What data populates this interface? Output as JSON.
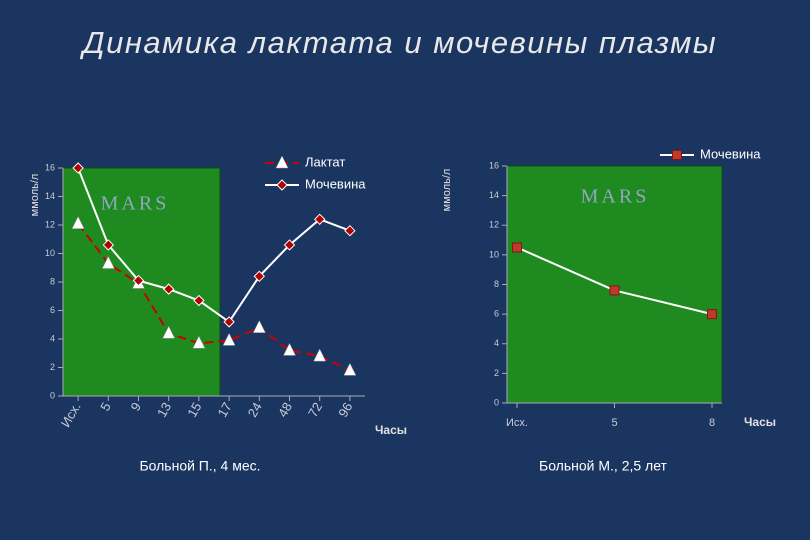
{
  "title": "Динамика лактата и мочевины плазмы",
  "chart_data": [
    {
      "type": "line",
      "y_label": "ммоль/л",
      "x_label": "Часы",
      "annotation": "MARS",
      "caption": "Больной П., 4 мес.",
      "categories": [
        "Исх.",
        "5",
        "9",
        "13",
        "15",
        "17",
        "24",
        "48",
        "72",
        "96"
      ],
      "ylim": [
        0,
        16
      ],
      "yticks": [
        0,
        2,
        4,
        6,
        8,
        10,
        12,
        14,
        16
      ],
      "series": [
        {
          "name": "Лактат",
          "color": "#cc0000",
          "marker": "triangle",
          "marker_color": "#ffffff",
          "dashed": true,
          "values": [
            12.1,
            9.3,
            7.9,
            4.4,
            3.7,
            3.9,
            4.8,
            3.2,
            2.8,
            1.8
          ]
        },
        {
          "name": "Мочевина",
          "color": "#ffffff",
          "marker": "diamond",
          "marker_color": "#b00000",
          "dashed": false,
          "values": [
            16,
            10.6,
            8.1,
            7.5,
            6.7,
            5.2,
            8.4,
            10.6,
            12.4,
            11.6
          ]
        }
      ]
    },
    {
      "type": "line",
      "y_label": "ммоль/л",
      "x_label": "Часы",
      "annotation": "MARS",
      "caption": "Больной М., 2,5 лет",
      "categories": [
        "Исх.",
        "5",
        "8"
      ],
      "ylim": [
        0,
        16
      ],
      "yticks": [
        0,
        2,
        4,
        6,
        8,
        10,
        12,
        14,
        16
      ],
      "series": [
        {
          "name": "Мочевина",
          "color": "#ffffff",
          "marker": "square",
          "marker_color": "#c0392b",
          "dashed": false,
          "values": [
            10.5,
            7.6,
            6.0
          ]
        }
      ]
    }
  ]
}
